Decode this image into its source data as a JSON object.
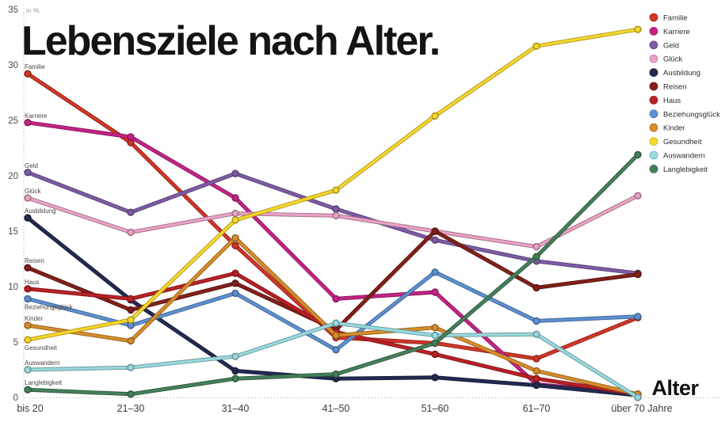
{
  "title": "Lebensziele nach Alter.",
  "unit_label": "in %",
  "x_axis_title": "Alter",
  "chart_data": {
    "type": "line",
    "title": "Lebensziele nach Alter.",
    "xlabel": "Alter",
    "ylabel": "in %",
    "ylim": [
      0,
      35
    ],
    "y_ticks": [
      35,
      30,
      25,
      20,
      15,
      10,
      5,
      0
    ],
    "grid": "dotted axis lines only, no inner gridlines",
    "legend_position": "top-right",
    "categories": [
      "bis 20",
      "21–30",
      "31–40",
      "41–50",
      "51–60",
      "61–70",
      "über 70 Jahre"
    ],
    "series": [
      {
        "name": "Familie",
        "color": "#d13627",
        "label_pos": "above",
        "values": [
          29.2,
          23.0,
          13.7,
          5.4,
          4.9,
          3.5,
          7.2
        ]
      },
      {
        "name": "Karriere",
        "color": "#c52386",
        "label_pos": "above",
        "values": [
          24.8,
          23.5,
          18.0,
          8.9,
          9.5,
          1.2,
          0.3
        ]
      },
      {
        "name": "Geld",
        "color": "#7d5ca5",
        "label_pos": "above",
        "values": [
          20.3,
          16.7,
          20.2,
          17.0,
          14.2,
          12.3,
          11.2
        ]
      },
      {
        "name": "Glück",
        "color": "#eaa2c5",
        "label_pos": "above",
        "values": [
          18.0,
          14.9,
          16.6,
          16.4,
          15.0,
          13.6,
          18.2
        ]
      },
      {
        "name": "Ausbildung",
        "color": "#232a52",
        "label_pos": "above",
        "values": [
          16.2,
          8.8,
          2.4,
          1.7,
          1.8,
          1.1,
          0.2
        ]
      },
      {
        "name": "Reisen",
        "color": "#82201a",
        "label_pos": "above",
        "values": [
          11.7,
          7.9,
          10.3,
          6.1,
          15.0,
          9.9,
          11.1
        ]
      },
      {
        "name": "Haus",
        "color": "#ba2125",
        "label_pos": "above",
        "values": [
          9.8,
          8.9,
          11.2,
          5.9,
          3.9,
          1.7,
          0.3
        ]
      },
      {
        "name": "Beziehungsglück",
        "color": "#5d90d1",
        "label_pos": "below",
        "values": [
          8.9,
          6.5,
          9.4,
          4.3,
          11.3,
          6.9,
          7.3
        ]
      },
      {
        "name": "Kinder",
        "color": "#d78d2b",
        "label_pos": "above",
        "values": [
          6.5,
          5.1,
          14.4,
          5.6,
          6.3,
          2.4,
          0.3
        ]
      },
      {
        "name": "Gesundheit",
        "color": "#f6d72b",
        "label_pos": "below",
        "values": [
          5.2,
          7.0,
          16.0,
          18.7,
          25.4,
          31.7,
          33.2
        ]
      },
      {
        "name": "Auswandern",
        "color": "#98d9df",
        "label_pos": "above",
        "values": [
          2.5,
          2.7,
          3.7,
          6.7,
          5.6,
          5.7,
          0.0
        ]
      },
      {
        "name": "Langlebigkeit",
        "color": "#44805a",
        "label_pos": "above",
        "values": [
          0.7,
          0.3,
          1.7,
          2.1,
          4.9,
          12.7,
          21.9
        ]
      }
    ]
  }
}
